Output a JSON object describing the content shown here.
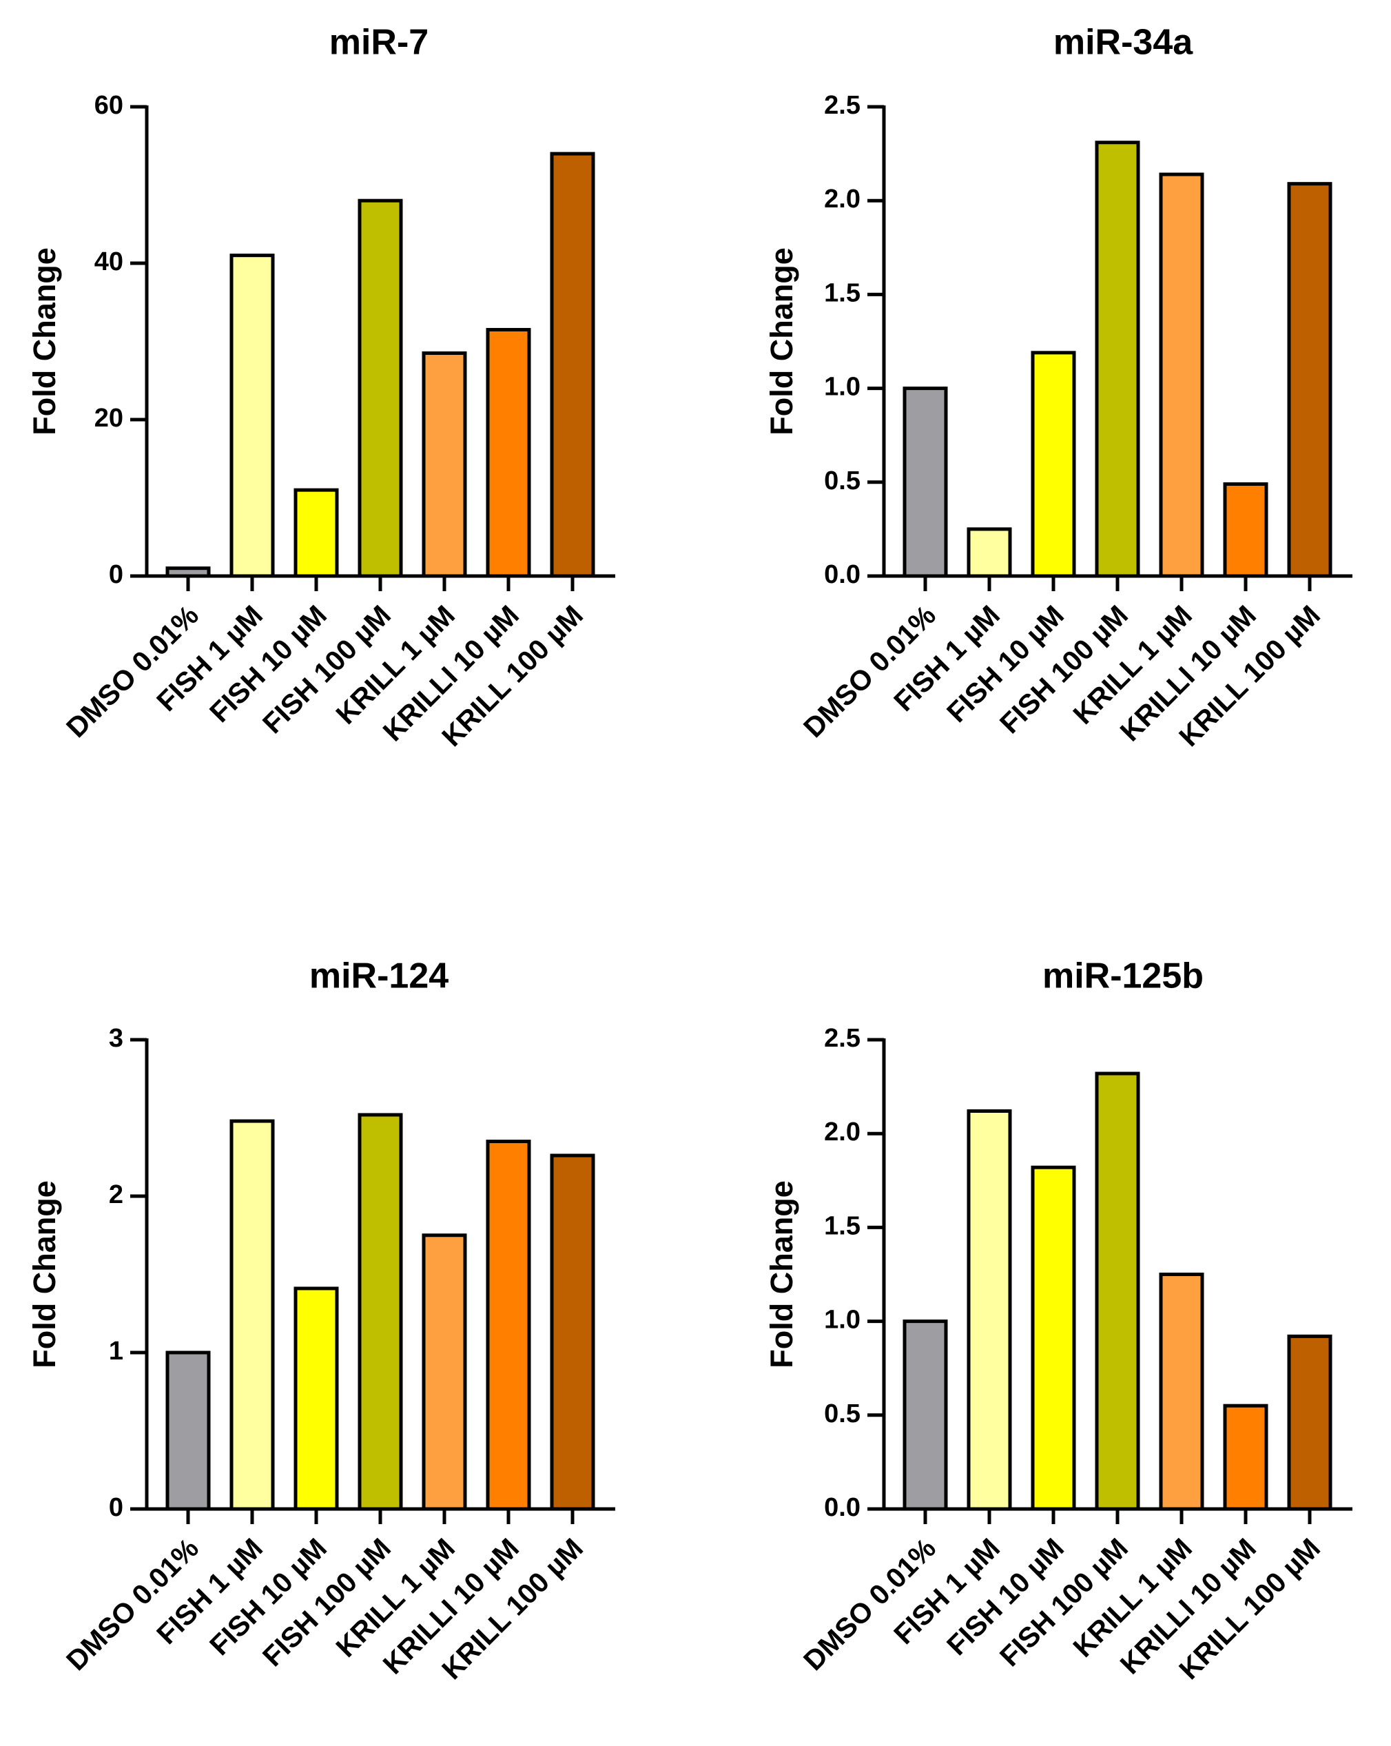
{
  "chart_data": [
    {
      "type": "bar",
      "title": "miR-7",
      "xlabel": "",
      "ylabel": "Fold Change",
      "ylim": [
        0,
        60
      ],
      "yticks": [
        "0",
        "20",
        "40",
        "60"
      ],
      "categories": [
        "DMSO 0.01%",
        "FISH 1 µM",
        "FISH 10 µM",
        "FISH 100 µM",
        "KRILL 1 µM",
        "KRILLI 10 µM",
        "KRILL 100 µM"
      ],
      "values": [
        1,
        41,
        11,
        48,
        28.5,
        31.5,
        54
      ],
      "colors": [
        "#9e9ea2",
        "#ffff9f",
        "#ffff00",
        "#bfbf00",
        "#ffa040",
        "#ff8000",
        "#bf6000"
      ]
    },
    {
      "type": "bar",
      "title": "miR-34a",
      "xlabel": "",
      "ylabel": "Fold Change",
      "ylim": [
        0,
        2.5
      ],
      "yticks": [
        "0.0",
        "0.5",
        "1.0",
        "1.5",
        "2.0",
        "2.5"
      ],
      "categories": [
        "DMSO 0.01%",
        "FISH 1 µM",
        "FISH 10 µM",
        "FISH 100 µM",
        "KRILL 1 µM",
        "KRILLI 10 µM",
        "KRILL 100 µM"
      ],
      "values": [
        1.0,
        0.25,
        1.19,
        2.31,
        2.14,
        0.49,
        2.09
      ],
      "colors": [
        "#9e9ea2",
        "#ffff9f",
        "#ffff00",
        "#bfbf00",
        "#ffa040",
        "#ff8000",
        "#bf6000"
      ]
    },
    {
      "type": "bar",
      "title": "miR-124",
      "xlabel": "",
      "ylabel": "Fold Change",
      "ylim": [
        0,
        3
      ],
      "yticks": [
        "0",
        "1",
        "2",
        "3"
      ],
      "categories": [
        "DMSO 0.01%",
        "FISH 1 µM",
        "FISH 10 µM",
        "FISH 100 µM",
        "KRILL 1 µM",
        "KRILLI 10 µM",
        "KRILL 100 µM"
      ],
      "values": [
        1.0,
        2.48,
        1.41,
        2.52,
        1.75,
        2.35,
        2.26
      ],
      "colors": [
        "#9e9ea2",
        "#ffff9f",
        "#ffff00",
        "#bfbf00",
        "#ffa040",
        "#ff8000",
        "#bf6000"
      ]
    },
    {
      "type": "bar",
      "title": "miR-125b",
      "xlabel": "",
      "ylabel": "Fold Change",
      "ylim": [
        0,
        2.5
      ],
      "yticks": [
        "0.0",
        "0.5",
        "1.0",
        "1.5",
        "2.0",
        "2.5"
      ],
      "categories": [
        "DMSO 0.01%",
        "FISH 1 µM",
        "FISH 10 µM",
        "FISH 100 µM",
        "KRILL 1 µM",
        "KRILLI 10 µM",
        "KRILL 100 µM"
      ],
      "values": [
        1.0,
        2.12,
        1.82,
        2.32,
        1.25,
        0.55,
        0.92
      ],
      "colors": [
        "#9e9ea2",
        "#ffff9f",
        "#ffff00",
        "#bfbf00",
        "#ffa040",
        "#ff8000",
        "#bf6000"
      ]
    }
  ]
}
